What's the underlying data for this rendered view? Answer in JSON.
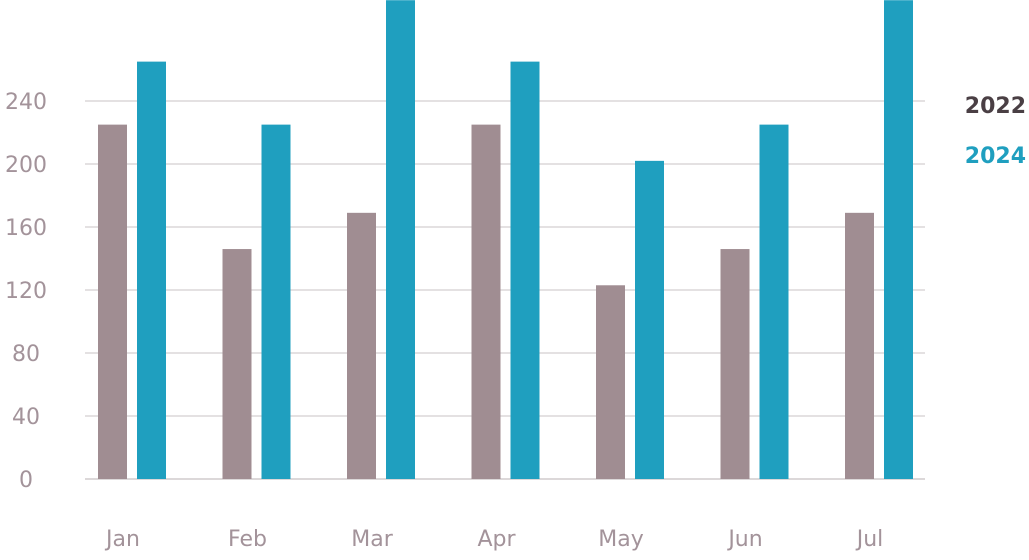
{
  "chart_data": {
    "type": "bar",
    "title": "",
    "xlabel": "",
    "ylabel": "",
    "categories": [
      "Jan",
      "Feb",
      "Mar",
      "Apr",
      "May",
      "Jun",
      "Jul"
    ],
    "series": [
      {
        "name": "2022",
        "color": "#a08d92",
        "values": [
          225,
          146,
          169,
          225,
          123,
          146,
          169
        ]
      },
      {
        "name": "2024",
        "color": "#1f9fbf",
        "values": [
          265,
          225,
          310,
          265,
          202,
          225,
          310
        ]
      }
    ],
    "ylim": [
      0,
      304
    ],
    "yticks": [
      0,
      40,
      80,
      120,
      160,
      200,
      240
    ],
    "grid": true,
    "legend_position": "top-right",
    "legend_colors": {
      "2022": "#4a3f44",
      "2024": "#1f9fbf"
    }
  }
}
